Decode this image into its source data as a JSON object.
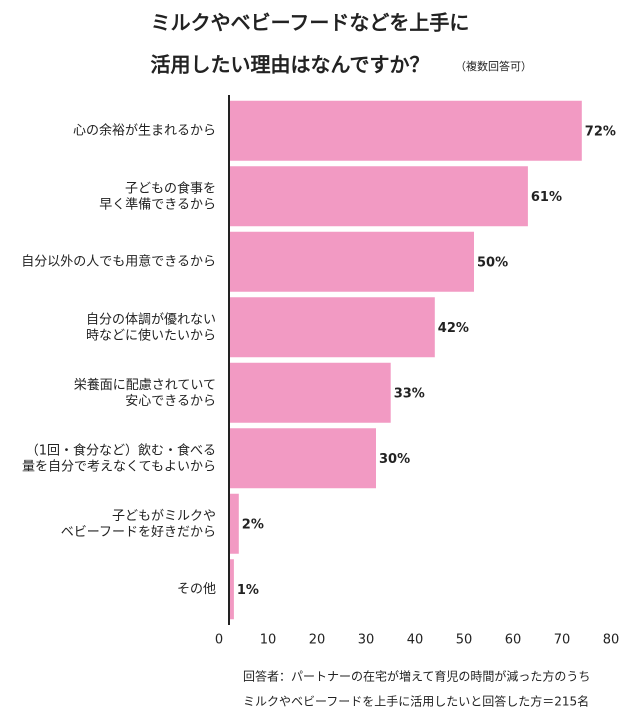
{
  "chart_data": {
    "type": "bar",
    "orientation": "horizontal",
    "title": [
      "ミルクやベビーフードなどを上手に",
      "活用したい理由はなんですか？"
    ],
    "subtitle": "（複数回答可）",
    "categories": [
      "心の余裕が生まれるから",
      "子どもの食事を\n早く準備できるから",
      "自分以外の人でも用意できるから",
      "自分の体調が優れない\n時などに使いたいから",
      "栄養面に配慮されていて\n安心できるから",
      "（1回・食分など）飲む・食べる\n量を自分で考えなくてもよいから",
      "子どもがミルクや\nベビーフードを好きだから",
      "その他"
    ],
    "values": [
      72,
      61,
      50,
      42,
      33,
      30,
      2,
      1
    ],
    "value_labels": [
      "72%",
      "61%",
      "50%",
      "42%",
      "33%",
      "30%",
      "2%",
      "1%"
    ],
    "color": "#f29ac3",
    "xlim": [
      0,
      80
    ],
    "xticks": [
      0,
      10,
      20,
      30,
      40,
      50,
      60,
      70,
      80
    ],
    "notes": [
      "回答者：パートナーの在宅が増えて育児の時間が減った方のうち",
      "ミルクやベビーフードを上手に活用したいと回答した方＝215名"
    ]
  }
}
